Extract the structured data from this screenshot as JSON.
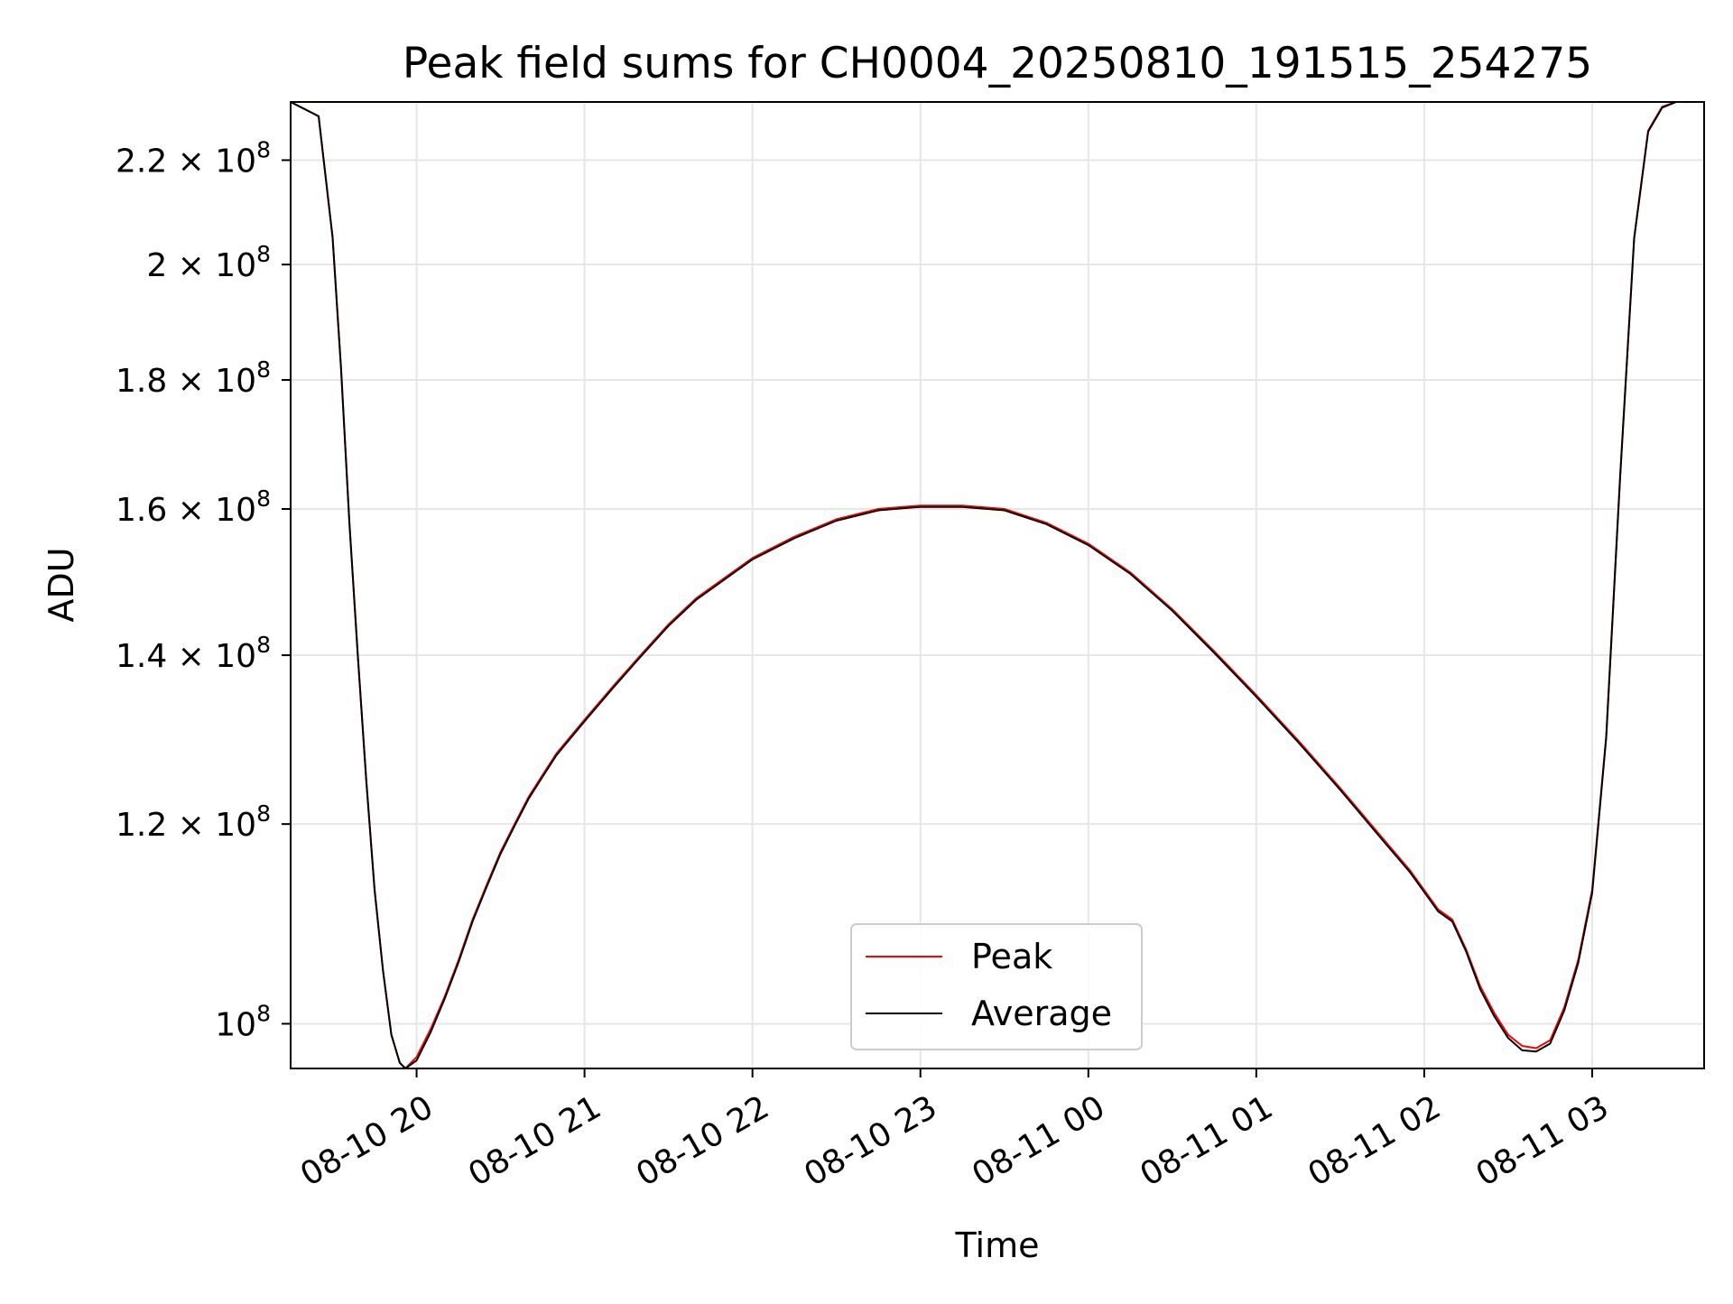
{
  "chart_data": {
    "type": "line",
    "title": "Peak field sums for CH0004_20250810_191515_254275",
    "xlabel": "Time",
    "ylabel": "ADU",
    "y_scale": "log",
    "grid": true,
    "legend_position": "lower-center",
    "x_range": [
      "2025-08-10 19:15",
      "2025-08-11 03:40"
    ],
    "y_range": [
      96000000,
      232000000
    ],
    "x_ticks": [
      {
        "value": "2025-08-10 20:00",
        "label": "08-10 20"
      },
      {
        "value": "2025-08-10 21:00",
        "label": "08-10 21"
      },
      {
        "value": "2025-08-10 22:00",
        "label": "08-10 22"
      },
      {
        "value": "2025-08-10 23:00",
        "label": "08-10 23"
      },
      {
        "value": "2025-08-11 00:00",
        "label": "08-11 00"
      },
      {
        "value": "2025-08-11 01:00",
        "label": "08-11 01"
      },
      {
        "value": "2025-08-11 02:00",
        "label": "08-11 02"
      },
      {
        "value": "2025-08-11 03:00",
        "label": "08-11 03"
      }
    ],
    "y_ticks": [
      {
        "value": 100000000,
        "mantissa": "",
        "exponent": "8"
      },
      {
        "value": 120000000,
        "mantissa": "1.2",
        "exponent": "8"
      },
      {
        "value": 140000000,
        "mantissa": "1.4",
        "exponent": "8"
      },
      {
        "value": 160000000,
        "mantissa": "1.6",
        "exponent": "8"
      },
      {
        "value": 180000000,
        "mantissa": "1.8",
        "exponent": "8"
      },
      {
        "value": 200000000,
        "mantissa": "2",
        "exponent": "8"
      },
      {
        "value": 220000000,
        "mantissa": "2.2",
        "exponent": "8"
      }
    ],
    "y_tick_times": "×",
    "y_tick_base": "10",
    "x": [
      "2025-08-10 19:15",
      "2025-08-10 19:25",
      "2025-08-10 19:30",
      "2025-08-10 19:33",
      "2025-08-10 19:36",
      "2025-08-10 19:39",
      "2025-08-10 19:42",
      "2025-08-10 19:45",
      "2025-08-10 19:48",
      "2025-08-10 19:51",
      "2025-08-10 19:54",
      "2025-08-10 19:56",
      "2025-08-10 20:00",
      "2025-08-10 20:05",
      "2025-08-10 20:10",
      "2025-08-10 20:15",
      "2025-08-10 20:20",
      "2025-08-10 20:25",
      "2025-08-10 20:30",
      "2025-08-10 20:35",
      "2025-08-10 20:40",
      "2025-08-10 20:45",
      "2025-08-10 20:50",
      "2025-08-10 21:00",
      "2025-08-10 21:10",
      "2025-08-10 21:20",
      "2025-08-10 21:30",
      "2025-08-10 21:40",
      "2025-08-10 22:00",
      "2025-08-10 22:15",
      "2025-08-10 22:30",
      "2025-08-10 22:45",
      "2025-08-10 23:00",
      "2025-08-10 23:15",
      "2025-08-10 23:30",
      "2025-08-10 23:45",
      "2025-08-11 00:00",
      "2025-08-11 00:15",
      "2025-08-11 00:30",
      "2025-08-11 00:45",
      "2025-08-11 01:00",
      "2025-08-11 01:15",
      "2025-08-11 01:30",
      "2025-08-11 01:45",
      "2025-08-11 01:55",
      "2025-08-11 02:05",
      "2025-08-11 02:10",
      "2025-08-11 02:15",
      "2025-08-11 02:20",
      "2025-08-11 02:25",
      "2025-08-11 02:30",
      "2025-08-11 02:35",
      "2025-08-11 02:40",
      "2025-08-11 02:45",
      "2025-08-11 02:50",
      "2025-08-11 02:55",
      "2025-08-11 03:00",
      "2025-08-11 03:05",
      "2025-08-11 03:10",
      "2025-08-11 03:15",
      "2025-08-11 03:20",
      "2025-08-11 03:25",
      "2025-08-11 03:30",
      "2025-08-11 03:40"
    ],
    "series": [
      {
        "name": "Peak",
        "color": "#ff0000",
        "values": [
          232000000,
          229000000,
          205000000,
          182000000,
          158000000,
          140000000,
          125000000,
          113000000,
          105000000,
          99000000,
          96500000,
          96000000,
          97000000,
          99500000,
          102500000,
          106000000,
          110000000,
          113500000,
          117000000,
          120000000,
          123000000,
          125500000,
          128000000,
          132000000,
          136000000,
          140000000,
          144000000,
          147500000,
          153000000,
          156000000,
          158500000,
          160000000,
          160500000,
          160500000,
          160000000,
          158000000,
          155000000,
          151000000,
          146000000,
          140500000,
          135000000,
          129500000,
          124000000,
          118500000,
          115000000,
          111000000,
          110000000,
          107000000,
          103500000,
          101000000,
          99000000,
          98000000,
          97800000,
          98500000,
          101500000,
          106000000,
          113000000,
          130000000,
          165000000,
          205000000,
          226000000,
          231000000,
          232000000,
          232000000
        ]
      },
      {
        "name": "Average",
        "color": "#000000",
        "values": [
          232000000,
          229000000,
          205000000,
          182000000,
          158000000,
          140000000,
          125000000,
          113000000,
          105000000,
          99000000,
          96500000,
          96000000,
          96700000,
          99200000,
          102300000,
          105800000,
          109800000,
          113300000,
          116800000,
          119800000,
          122800000,
          125300000,
          127800000,
          131800000,
          135800000,
          139800000,
          143800000,
          147300000,
          152800000,
          155800000,
          158300000,
          159800000,
          160300000,
          160300000,
          159800000,
          157800000,
          154800000,
          150800000,
          145800000,
          140300000,
          134800000,
          129300000,
          123800000,
          118300000,
          114800000,
          110800000,
          109800000,
          106800000,
          103200000,
          100700000,
          98700000,
          97600000,
          97500000,
          98200000,
          101200000,
          105700000,
          112700000,
          129800000,
          164800000,
          204800000,
          225800000,
          230800000,
          232000000,
          232000000
        ]
      }
    ]
  }
}
